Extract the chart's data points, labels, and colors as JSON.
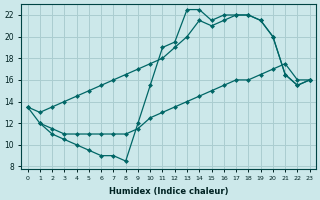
{
  "xlabel": "Humidex (Indice chaleur)",
  "bg_color": "#cce8ea",
  "grid_color": "#aacdd0",
  "line_color": "#006666",
  "xlim_min": -0.5,
  "xlim_max": 23.5,
  "ylim_min": 7.8,
  "ylim_max": 23.0,
  "xticks": [
    0,
    1,
    2,
    3,
    4,
    5,
    6,
    7,
    8,
    9,
    10,
    11,
    12,
    13,
    14,
    15,
    16,
    17,
    18,
    19,
    20,
    21,
    22,
    23
  ],
  "yticks": [
    8,
    10,
    12,
    14,
    16,
    18,
    20,
    22
  ],
  "line1_x": [
    0,
    1,
    2,
    3,
    4,
    5,
    6,
    7,
    8,
    9,
    10,
    11,
    12,
    13,
    14,
    15,
    16,
    17,
    18,
    19,
    20,
    21,
    22,
    23
  ],
  "line1_y": [
    13.5,
    12.0,
    11.0,
    10.5,
    10.0,
    9.5,
    9.0,
    9.0,
    8.5,
    12.0,
    15.5,
    19.0,
    19.5,
    22.5,
    22.5,
    21.5,
    22.0,
    22.0,
    22.0,
    21.5,
    20.0,
    16.5,
    15.5,
    16.0
  ],
  "line2_x": [
    0,
    1,
    2,
    3,
    4,
    5,
    6,
    7,
    8,
    9,
    10,
    11,
    12,
    13,
    14,
    15,
    16,
    17,
    18,
    19,
    20,
    21,
    22,
    23
  ],
  "line2_y": [
    13.5,
    13.0,
    13.5,
    14.0,
    14.5,
    15.0,
    15.5,
    16.0,
    16.5,
    17.0,
    17.5,
    18.0,
    19.0,
    20.0,
    21.5,
    21.0,
    21.5,
    22.0,
    22.0,
    21.5,
    20.0,
    16.5,
    15.5,
    16.0
  ],
  "line3_x": [
    1,
    2,
    3,
    4,
    5,
    6,
    7,
    8,
    9,
    10,
    11,
    12,
    13,
    14,
    15,
    16,
    17,
    18,
    19,
    20,
    21,
    22,
    23
  ],
  "line3_y": [
    12.0,
    11.5,
    11.0,
    11.0,
    11.0,
    11.0,
    11.0,
    11.0,
    11.5,
    12.5,
    13.0,
    13.5,
    14.0,
    14.5,
    15.0,
    15.5,
    16.0,
    16.0,
    16.5,
    17.0,
    17.5,
    16.0,
    16.0
  ]
}
